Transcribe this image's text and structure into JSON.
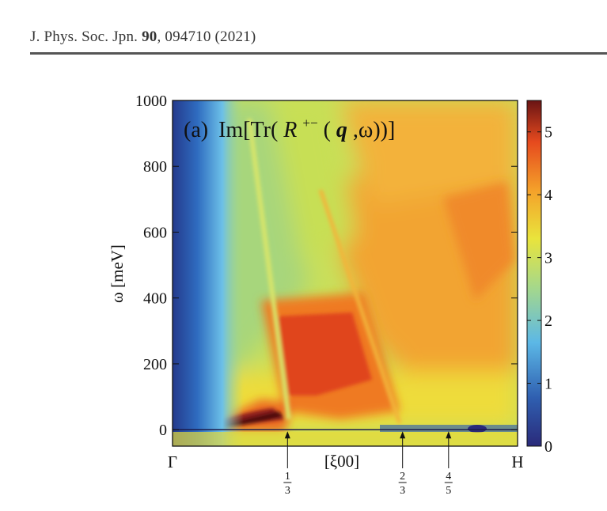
{
  "header": {
    "journal": "J. Phys. Soc. Jpn.",
    "volume": "90",
    "article": ", 094710 (2021)"
  },
  "chart_data": {
    "type": "heatmap",
    "panel_label": "(a)",
    "title_prefix": "Im[Tr(",
    "title_R": "R",
    "title_sup": "+−",
    "title_paren": "(",
    "title_q": "q",
    "title_suffix": ",ω))]",
    "ylabel": "ω [meV]",
    "xlabel": "[ξ00]",
    "ylim": [
      -50,
      1000
    ],
    "yticks": [
      0,
      200,
      400,
      600,
      800,
      1000
    ],
    "xlim": [
      0,
      1
    ],
    "x_endpoints": [
      "Γ",
      "H"
    ],
    "x_markers": [
      {
        "x": 0.3333,
        "num": "1",
        "den": "3"
      },
      {
        "x": 0.6667,
        "num": "2",
        "den": "3"
      },
      {
        "x": 0.8,
        "num": "4",
        "den": "5"
      }
    ],
    "colorbar": {
      "min": 0,
      "max": 5.5,
      "ticks": [
        0,
        1,
        2,
        3,
        4,
        5
      ]
    },
    "colormap": [
      "#2a2a7a",
      "#2f5fb0",
      "#5cb8e6",
      "#a6d88a",
      "#e9e43c",
      "#f4a12a",
      "#e64a1e",
      "#8a1a1a"
    ],
    "features": [
      {
        "name": "low-gamma-dark-band",
        "x_range": [
          0.0,
          0.05
        ],
        "omega_range": [
          0,
          1000
        ],
        "intensity": 0.6
      },
      {
        "name": "acoustic-branch-peak",
        "x_range": [
          0.0,
          0.33
        ],
        "omega_range": [
          0,
          80
        ],
        "intensity": 5.3
      },
      {
        "name": "continuum-peak-1/3",
        "x_range": [
          0.3,
          0.6
        ],
        "omega_range": [
          100,
          400
        ],
        "intensity": 4.6
      },
      {
        "name": "upper-continuum",
        "x_range": [
          0.45,
          1.0
        ],
        "omega_range": [
          300,
          1000
        ],
        "intensity": 3.8
      },
      {
        "name": "zero-energy-line",
        "x_range": [
          0.0,
          1.0
        ],
        "omega_range": [
          -5,
          5
        ],
        "intensity": 0.4
      }
    ]
  }
}
